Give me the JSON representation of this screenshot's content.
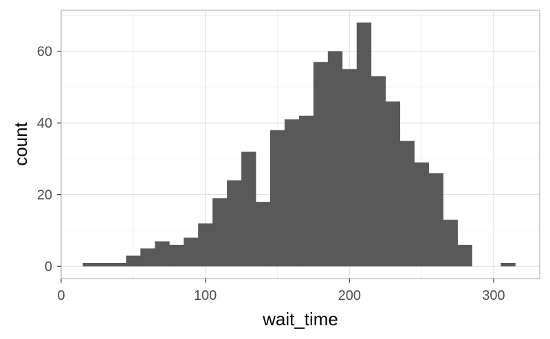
{
  "chart_data": {
    "type": "bar",
    "subtype": "histogram",
    "xlabel": "wait_time",
    "ylabel": "count",
    "xlim": [
      0,
      332
    ],
    "ylim": [
      -3.4,
      71.4
    ],
    "x_ticks": [
      0,
      100,
      200,
      300
    ],
    "y_ticks": [
      0,
      20,
      40,
      60
    ],
    "grid": true,
    "bar_color": "#595959",
    "bin_width": 10,
    "bins": [
      {
        "x0": 15,
        "x1": 25,
        "count": 1
      },
      {
        "x0": 25,
        "x1": 35,
        "count": 1
      },
      {
        "x0": 35,
        "x1": 45,
        "count": 1
      },
      {
        "x0": 45,
        "x1": 55,
        "count": 3
      },
      {
        "x0": 55,
        "x1": 65,
        "count": 5
      },
      {
        "x0": 65,
        "x1": 75,
        "count": 7
      },
      {
        "x0": 75,
        "x1": 85,
        "count": 6
      },
      {
        "x0": 85,
        "x1": 95,
        "count": 8
      },
      {
        "x0": 95,
        "x1": 105,
        "count": 12
      },
      {
        "x0": 105,
        "x1": 115,
        "count": 19
      },
      {
        "x0": 115,
        "x1": 125,
        "count": 24
      },
      {
        "x0": 125,
        "x1": 135,
        "count": 32
      },
      {
        "x0": 135,
        "x1": 145,
        "count": 18
      },
      {
        "x0": 145,
        "x1": 155,
        "count": 38
      },
      {
        "x0": 155,
        "x1": 165,
        "count": 41
      },
      {
        "x0": 165,
        "x1": 175,
        "count": 42
      },
      {
        "x0": 175,
        "x1": 185,
        "count": 57
      },
      {
        "x0": 185,
        "x1": 195,
        "count": 60
      },
      {
        "x0": 195,
        "x1": 205,
        "count": 55
      },
      {
        "x0": 205,
        "x1": 215,
        "count": 68
      },
      {
        "x0": 215,
        "x1": 225,
        "count": 53
      },
      {
        "x0": 225,
        "x1": 235,
        "count": 46
      },
      {
        "x0": 235,
        "x1": 245,
        "count": 35
      },
      {
        "x0": 245,
        "x1": 255,
        "count": 29
      },
      {
        "x0": 255,
        "x1": 265,
        "count": 26
      },
      {
        "x0": 265,
        "x1": 275,
        "count": 13
      },
      {
        "x0": 275,
        "x1": 285,
        "count": 6
      },
      {
        "x0": 285,
        "x1": 295,
        "count": 0
      },
      {
        "x0": 295,
        "x1": 305,
        "count": 0
      },
      {
        "x0": 305,
        "x1": 315,
        "count": 1
      }
    ]
  }
}
